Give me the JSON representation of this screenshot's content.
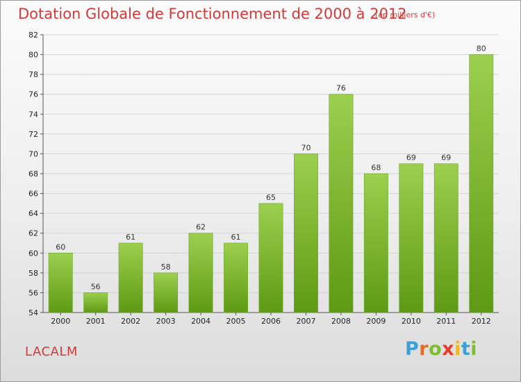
{
  "header": {
    "title": "Dotation Globale de Fonctionnement de 2000 à 2012",
    "subtitle": "(en milliers d'€)"
  },
  "footer": {
    "commune": "LACALM",
    "logo_text": "Proxiti"
  },
  "colors": {
    "title": "#d23a3a",
    "bar_top": "#9ccf4e",
    "bar_bottom": "#5e9a14",
    "grid": "#d4d4d4",
    "logo_letters": [
      "#3aa0d8",
      "#e86b1f",
      "#7cbf2a",
      "#e63b2e",
      "#f2b71c",
      "#3aa0d8",
      "#7cbf2a"
    ]
  },
  "chart_data": {
    "type": "bar",
    "title": "Dotation Globale de Fonctionnement de 2000 à 2012",
    "subtitle": "(en milliers d'€)",
    "xlabel": "",
    "ylabel": "",
    "categories": [
      "2000",
      "2001",
      "2002",
      "2003",
      "2004",
      "2005",
      "2006",
      "2007",
      "2008",
      "2009",
      "2010",
      "2011",
      "2012"
    ],
    "values": [
      60,
      56,
      61,
      58,
      62,
      61,
      65,
      70,
      76,
      68,
      69,
      69,
      80
    ],
    "ylim": [
      54,
      82
    ],
    "yticks": [
      54,
      56,
      58,
      60,
      62,
      64,
      66,
      68,
      70,
      72,
      74,
      76,
      78,
      80,
      82
    ],
    "grid": true,
    "legend": "none"
  }
}
